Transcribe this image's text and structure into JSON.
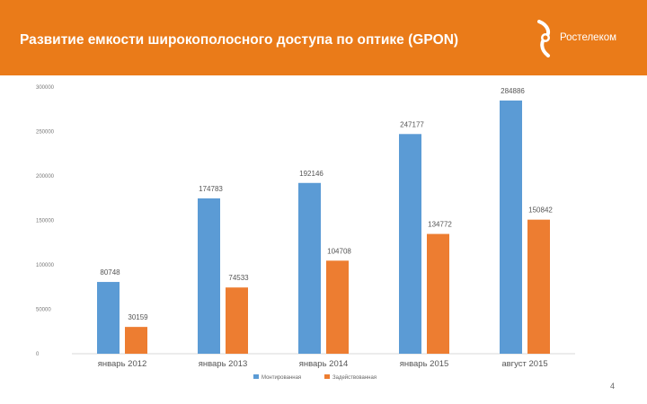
{
  "header": {
    "title": "Развитие емкости широкополосного доступа по оптике (GPON)",
    "logo_text": "Ростелеком",
    "background_color": "#ea7b19",
    "text_color": "#ffffff"
  },
  "page_number": "4",
  "chart_data": {
    "type": "bar",
    "categories": [
      "январь 2012",
      "январь 2013",
      "январь 2014",
      "январь 2015",
      "август 2015"
    ],
    "series": [
      {
        "name": "Монтированная",
        "color": "#5b9bd5",
        "values": [
          80748,
          174783,
          192146,
          247177,
          284886
        ]
      },
      {
        "name": "Задействованная",
        "color": "#ed7d31",
        "values": [
          30159,
          74533,
          104708,
          134772,
          150842
        ]
      }
    ],
    "data_labels": [
      [
        "80748",
        "174783",
        "192146",
        "247177",
        "284886"
      ],
      [
        "30159",
        "74533",
        "104708",
        "134772",
        "150842"
      ]
    ],
    "yticks": [
      "0",
      "50000",
      "100000",
      "150000",
      "200000",
      "250000",
      "300000"
    ],
    "ylim": [
      0,
      300000
    ],
    "legend_position": "bottom",
    "grid": false
  }
}
